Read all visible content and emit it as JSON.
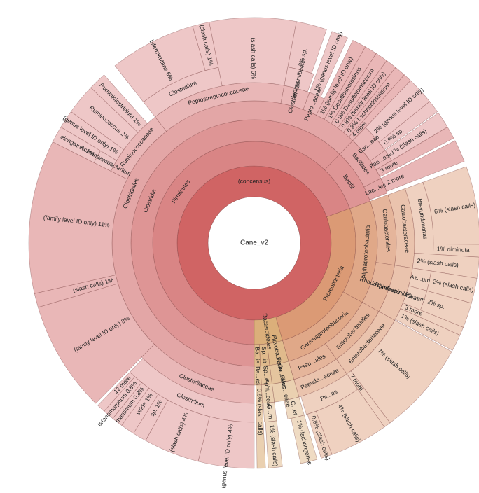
{
  "chart_data": {
    "type": "sunburst",
    "root": {
      "name": "Cane_v2",
      "value": 100,
      "children": [
        {
          "name": "(concensus)",
          "value": 100,
          "color": "#d06464",
          "children": [
            {
              "name": "Firmicutes",
              "value": 69.5,
              "color": "#d47474",
              "children": [
                {
                  "name": "Clostridia",
                  "value": 62.2,
                  "children": [
                    {
                      "name": "Clostridiales",
                      "value": 62.2,
                      "children": [
                        {
                          "name": "Clostridiaceae",
                          "value": 12.4,
                          "children": [
                            {
                              "name": "Clostridium",
                              "value": 12.2,
                              "children": [
                                {
                                  "name": "(genus level ID only) 4%",
                                  "value": 4
                                },
                                {
                                  "name": "(slash calls) 4%",
                                  "value": 4
                                },
                                {
                                  "name": "sp. 1%",
                                  "value": 1
                                },
                                {
                                  "name": "viride 1%",
                                  "value": 1
                                },
                                {
                                  "name": "maritimum 0.8%",
                                  "value": 0.8
                                },
                                {
                                  "name": "tetanomorphum 0.8%",
                                  "value": 0.8
                                },
                                {
                                  "name": "12 more",
                                  "value": 0.6
                                }
                              ]
                            }
                          ]
                        },
                        {
                          "name": "(family level ID only) 8%",
                          "value": 8
                        },
                        {
                          "name": "(slash calls) 1%",
                          "value": 1
                        },
                        {
                          "name": "(family level ID only) 11%",
                          "value": 11
                        },
                        {
                          "name": "Ruminococcaceae",
                          "value": 7,
                          "children": [
                            {
                              "name": "Acetanaerobacterium",
                              "value": 1.2,
                              "children": [
                                {
                                  "name": "elongatum 1%",
                                  "value": 1.2
                                }
                              ]
                            },
                            {
                              "name": "(genus level ID only) 1%",
                              "value": 1.3
                            },
                            {
                              "name": "Ruminococcus 2%",
                              "value": 2.2
                            },
                            {
                              "name": "Ruminiclostridium 1%",
                              "value": 1.3
                            }
                          ]
                        },
                        {
                          "name": "Peptostreptococcaceae",
                          "value": 13.6,
                          "children": [
                            {
                              "name": "Clostridium",
                              "value": 7.4,
                              "children": [
                                {
                                  "name": "bifermentans 6%",
                                  "value": 6.2
                                },
                                {
                                  "name": "(slash calls) 1%",
                                  "value": 1.2
                                }
                              ]
                            },
                            {
                              "name": "(slash calls) 6%",
                              "value": 6.2
                            }
                          ]
                        },
                        {
                          "name": "Clostridi...ae",
                          "value": 2.6,
                          "children": [
                            {
                              "name": "Sedimentibacter",
                              "value": 2.4,
                              "children": [
                                {
                                  "name": "2% sp.",
                                  "value": 2.2
                                }
                              ]
                            }
                          ]
                        },
                        {
                          "name": "Pepto...aceae",
                          "value": 1.6,
                          "children": [
                            {
                              "name": "1% (genus level ID only)",
                              "value": 1.2
                            }
                          ]
                        },
                        {
                          "name": "1% (family level ID only)",
                          "value": 1
                        },
                        {
                          "name": "1% Desulfosporosinus",
                          "value": 0.9
                        },
                        {
                          "name": "0.9% Desulfotomaculum",
                          "value": 0.9
                        },
                        {
                          "name": "0.8% (family level ID only)",
                          "value": 0.8
                        },
                        {
                          "name": "0.8% Lachnoclostridium",
                          "value": 0.8
                        },
                        {
                          "name": "4 more",
                          "value": 0.6
                        }
                      ]
                    }
                  ]
                },
                {
                  "name": "Bacilli",
                  "value": 7.3,
                  "children": [
                    {
                      "name": "Bacillales",
                      "value": 5.3,
                      "children": [
                        {
                          "name": "Bac...eae",
                          "value": 3,
                          "children": [
                            {
                              "name": "2% (genus level ID only)",
                              "value": 2
                            },
                            {
                              "name": "0.9% sp.",
                              "value": 0.9
                            }
                          ]
                        },
                        {
                          "name": "Pae...eae",
                          "value": 1.2,
                          "children": [
                            {
                              "name": "1% (slash calls)",
                              "value": 1.2
                            }
                          ]
                        },
                        {
                          "name": "3 more",
                          "value": 0.9
                        }
                      ]
                    },
                    {
                      "name": "Lac...les",
                      "value": 1.8,
                      "children": [
                        {
                          "name": "2 more",
                          "value": 1.6
                        }
                      ]
                    }
                  ]
                }
              ]
            },
            {
              "name": "Proteobacteria",
              "value": 26,
              "color": "#d68c62",
              "children": [
                {
                  "name": "Alphaproteobacteria",
                  "value": 13.5,
                  "children": [
                    {
                      "name": "Caulobacterales",
                      "value": 8,
                      "children": [
                        {
                          "name": "Caulobacteraceae",
                          "value": 8,
                          "children": [
                            {
                              "name": "Brevundimonas",
                              "value": 6.5,
                              "children": [
                                {
                                  "name": "6% (slash calls)",
                                  "value": 5.6
                                },
                                {
                                  "name": "1% diminuta",
                                  "value": 0.9
                                }
                              ]
                            },
                            {
                              "name": "2% (slash calls)",
                              "value": 1.5
                            }
                          ]
                        }
                      ]
                    },
                    {
                      "name": "Rhodospirillales",
                      "value": 5.5,
                      "children": [
                        {
                          "name": "Rhodospirillaceae",
                          "value": 5.5,
                          "children": [
                            {
                              "name": "Az...um",
                              "value": 1.8,
                              "children": [
                                {
                                  "name": "2% (slash calls)",
                                  "value": 1.8
                                }
                              ]
                            },
                            {
                              "name": "Ph...um",
                              "value": 1.8,
                              "children": [
                                {
                                  "name": "2% sp.",
                                  "value": 1.8
                                }
                              ]
                            },
                            {
                              "name": "3 more",
                              "value": 0.6
                            },
                            {
                              "name": "1% (slash calls)",
                              "value": 1.2
                            }
                          ]
                        }
                      ]
                    }
                  ]
                },
                {
                  "name": "Gammaproteobacteria",
                  "value": 12.5,
                  "children": [
                    {
                      "name": "Enterobacteriales",
                      "value": 7.2,
                      "children": [
                        {
                          "name": "Enterobacteriaceae",
                          "value": 7.2,
                          "children": [
                            {
                              "name": "7% (slash calls)",
                              "value": 6.7
                            },
                            {
                              "name": "7 more",
                              "value": 0.5
                            }
                          ]
                        }
                      ]
                    },
                    {
                      "name": "Pseu...ales",
                      "value": 5.3,
                      "children": [
                        {
                          "name": "Pseudo...aceae",
                          "value": 5.3,
                          "children": [
                            {
                              "name": "Ps...as",
                              "value": 5.1,
                              "children": [
                                {
                                  "name": "4% (slash calls)",
                                  "value": 4.2
                                },
                                {
                                  "name": "0.8% (slash calls)",
                                  "value": 0.8
                                }
                              ]
                            }
                          ]
                        }
                      ]
                    }
                  ]
                }
              ]
            },
            {
              "name": "Bacteroidetes",
              "value": 4.5,
              "color": "#d6a468",
              "children": [
                {
                  "name": "Flavobacteriia",
                  "value": 2.5,
                  "children": [
                    {
                      "name": "Flavo...iales",
                      "value": 2.5,
                      "children": [
                        {
                          "name": "Flavo...ceae",
                          "value": 2.5,
                          "children": [
                            {
                              "name": "C...er",
                              "value": 1.5,
                              "children": [
                                {
                                  "name": "1% dachongense",
                                  "value": 1.2
                                }
                              ]
                            }
                          ]
                        }
                      ]
                    }
                  ]
                },
                {
                  "name": "Sp...ia",
                  "value": 1.2,
                  "children": [
                    {
                      "name": "Sp...es",
                      "value": 1.2,
                      "children": [
                        {
                          "name": "Sphi...ceae",
                          "value": 1.2,
                          "children": [
                            {
                              "name": "S...m",
                              "value": 1.1,
                              "children": [
                                {
                                  "name": "1% (slash calls)",
                                  "value": 1
                                }
                              ]
                            }
                          ]
                        }
                      ]
                    }
                  ]
                },
                {
                  "name": "Ba...ia",
                  "value": 0.8,
                  "children": [
                    {
                      "name": "Ba...es",
                      "value": 0.8,
                      "children": [
                        {
                          "name": "0.6% (slash calls)",
                          "value": 0.6
                        }
                      ]
                    }
                  ]
                }
              ]
            }
          ]
        }
      ]
    }
  }
}
